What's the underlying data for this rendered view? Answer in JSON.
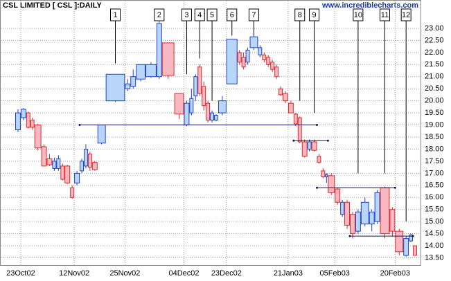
{
  "chart_data": {
    "type": "candlevolume",
    "title": "CSL LIMITED [ CSL ]:DAILY",
    "subtitle": "www.incrediblecharts.com",
    "up_color": "#2040d0",
    "down_color": "#e02828",
    "open": [
      18.8,
      19.3,
      19.5,
      19.2,
      19.0,
      18.1,
      17.6,
      17.2,
      17.2,
      17.3,
      17.3,
      16.4,
      16.6,
      17.1,
      17.3,
      17.8,
      17.45,
      18.25,
      20.0,
      20.5,
      20.6,
      20.9,
      21.0,
      21.0,
      22.4,
      20.3,
      19.0,
      19.5,
      20.2,
      21.4,
      20.6,
      19.9,
      19.2,
      19.2,
      19.5,
      20.7,
      22.0,
      21.8,
      21.6,
      22.2,
      21.9,
      21.9,
      21.8,
      21.6,
      21.4,
      20.5,
      20.3,
      19.9,
      19.45,
      19.3,
      18.3,
      18.0,
      18.3,
      17.7,
      17.1,
      16.85,
      16.9,
      16.35,
      15.3,
      15.8,
      15.3,
      14.6,
      14.9,
      14.9,
      15.0,
      16.4,
      15.5,
      14.6,
      13.6,
      14.2,
      14.0
    ],
    "high": [
      19.65,
      19.7,
      19.55,
      19.3,
      19.05,
      18.2,
      17.8,
      17.65,
      17.75,
      17.4,
      17.35,
      16.5,
      17.1,
      17.6,
      18.2,
      17.9,
      17.5,
      19.0,
      21.1,
      20.9,
      21.3,
      21.5,
      21.6,
      23.3,
      22.4,
      20.3,
      20.0,
      20.5,
      21.1,
      21.5,
      20.8,
      20.0,
      19.6,
      19.45,
      20.2,
      22.55,
      22.1,
      22.0,
      22.2,
      22.7,
      22.3,
      22.0,
      21.9,
      21.7,
      21.5,
      20.6,
      20.4,
      20.0,
      19.5,
      19.35,
      18.4,
      18.4,
      18.4,
      17.8,
      17.2,
      17.0,
      17.0,
      16.4,
      15.9,
      15.9,
      15.4,
      15.5,
      16.0,
      15.5,
      16.3,
      16.45,
      15.6,
      14.7,
      14.4,
      14.5,
      14.0
    ],
    "low": [
      18.7,
      19.2,
      18.85,
      18.8,
      17.95,
      17.3,
      17.3,
      17.1,
      17.1,
      16.7,
      16.55,
      15.95,
      16.5,
      17.0,
      17.2,
      17.1,
      17.1,
      18.2,
      19.95,
      20.4,
      20.5,
      20.8,
      20.95,
      20.9,
      20.9,
      19.25,
      18.95,
      19.4,
      20.0,
      20.2,
      19.6,
      19.1,
      19.1,
      19.15,
      19.4,
      20.7,
      21.5,
      21.3,
      21.5,
      22.1,
      21.8,
      21.6,
      21.4,
      21.2,
      20.9,
      20.2,
      19.9,
      19.5,
      18.95,
      18.25,
      17.65,
      17.9,
      17.9,
      17.4,
      16.8,
      16.6,
      16.1,
      15.7,
      15.2,
      14.7,
      14.3,
      14.5,
      14.8,
      14.6,
      14.9,
      14.3,
      14.4,
      13.6,
      13.55,
      14.15,
      13.6
    ],
    "close": [
      19.5,
      19.65,
      18.9,
      18.9,
      18.05,
      17.3,
      17.35,
      17.5,
      17.6,
      16.75,
      16.6,
      16.0,
      17.0,
      17.5,
      18.0,
      17.25,
      17.15,
      19.0,
      21.1,
      20.7,
      21.0,
      21.5,
      21.5,
      23.2,
      21.05,
      19.45,
      19.9,
      20.1,
      21.0,
      20.3,
      19.8,
      19.2,
      19.5,
      19.4,
      20.0,
      22.55,
      21.6,
      21.4,
      22.1,
      22.65,
      22.2,
      21.7,
      21.5,
      21.3,
      21.0,
      20.25,
      20.0,
      19.5,
      19.05,
      18.3,
      17.7,
      18.3,
      17.95,
      17.45,
      16.85,
      16.95,
      16.2,
      15.8,
      15.8,
      14.85,
      14.5,
      15.4,
      15.8,
      15.4,
      16.2,
      14.5,
      14.6,
      13.75,
      14.3,
      14.45,
      13.6
    ],
    "volume": [
      8,
      8,
      6,
      6,
      10,
      8,
      8,
      6,
      6,
      6,
      8,
      6,
      8,
      6,
      6,
      6,
      8,
      12,
      28,
      8,
      8,
      14,
      16,
      8,
      18,
      14,
      8,
      6,
      6,
      6,
      6,
      6,
      6,
      6,
      12,
      16,
      6,
      6,
      6,
      12,
      6,
      6,
      6,
      6,
      6,
      6,
      8,
      8,
      6,
      6,
      8,
      6,
      8,
      6,
      6,
      4,
      10,
      8,
      6,
      8,
      8,
      8,
      12,
      8,
      8,
      14,
      8,
      12,
      8,
      6,
      6
    ],
    "xticks": [
      {
        "value": 1,
        "label": "23Oct02"
      },
      {
        "value": 12,
        "label": "12Nov02"
      },
      {
        "value": 19,
        "label": "25Nov02"
      },
      {
        "value": 26,
        "label": "04Dec02"
      },
      {
        "value": 35,
        "label": "23Dec02"
      },
      {
        "value": 47,
        "label": "21Jan03"
      },
      {
        "value": 57,
        "label": "05Feb03"
      },
      {
        "value": 67,
        "label": "20Feb03"
      }
    ],
    "ylim": [
      13.2,
      23.6
    ],
    "yticks": [
      {
        "value": 13.5,
        "label": "13.50"
      },
      {
        "value": 14,
        "label": "14.00"
      },
      {
        "value": 14.5,
        "label": "14.50"
      },
      {
        "value": 15,
        "label": "15.00"
      },
      {
        "value": 15.5,
        "label": "15.50"
      },
      {
        "value": 16,
        "label": "16.00"
      },
      {
        "value": 16.5,
        "label": "16.50"
      },
      {
        "value": 17,
        "label": "17.00"
      },
      {
        "value": 17.5,
        "label": "17.50"
      },
      {
        "value": 18,
        "label": "18.00"
      },
      {
        "value": 18.5,
        "label": "18.50"
      },
      {
        "value": 19,
        "label": "19.00"
      },
      {
        "value": 19.5,
        "label": "19.50"
      },
      {
        "value": 20,
        "label": "20.00"
      },
      {
        "value": 20.5,
        "label": "20.50"
      },
      {
        "value": 21,
        "label": "21.00"
      },
      {
        "value": 21.5,
        "label": "21.50"
      },
      {
        "value": 22,
        "label": "22.00"
      },
      {
        "value": 22.5,
        "label": "22.50"
      },
      {
        "value": 23,
        "label": "23.00"
      }
    ],
    "grid": true,
    "annotations": [
      {
        "text": "1",
        "index": 18,
        "price": 21.55
      },
      {
        "text": "2",
        "index": 23,
        "price": 23.3
      },
      {
        "text": "3",
        "index": 26,
        "price": 21.1
      },
      {
        "text": "4",
        "index": 29,
        "price": 21.75
      },
      {
        "text": "5",
        "index": 32,
        "price": 20.0
      },
      {
        "text": "6",
        "index": 35,
        "price": 22.7
      },
      {
        "text": "7",
        "index": 39,
        "price": 22.7
      },
      {
        "text": "8",
        "index": 49,
        "price": 20.0
      },
      {
        "text": "9",
        "index": 52,
        "price": 19.5
      },
      {
        "text": "10",
        "index": 61,
        "price": 17.0
      },
      {
        "text": "11",
        "index": 65,
        "price": 17.0
      },
      {
        "text": "12",
        "index": 68,
        "price": 15.0
      }
    ],
    "levels": [
      {
        "price": 19.0,
        "from": 13,
        "to": 53
      },
      {
        "price": 18.35,
        "from": 48,
        "to": 56
      },
      {
        "price": 16.4,
        "from": 53,
        "to": 67
      },
      {
        "price": 14.4,
        "from": 60,
        "to": 70
      }
    ]
  }
}
